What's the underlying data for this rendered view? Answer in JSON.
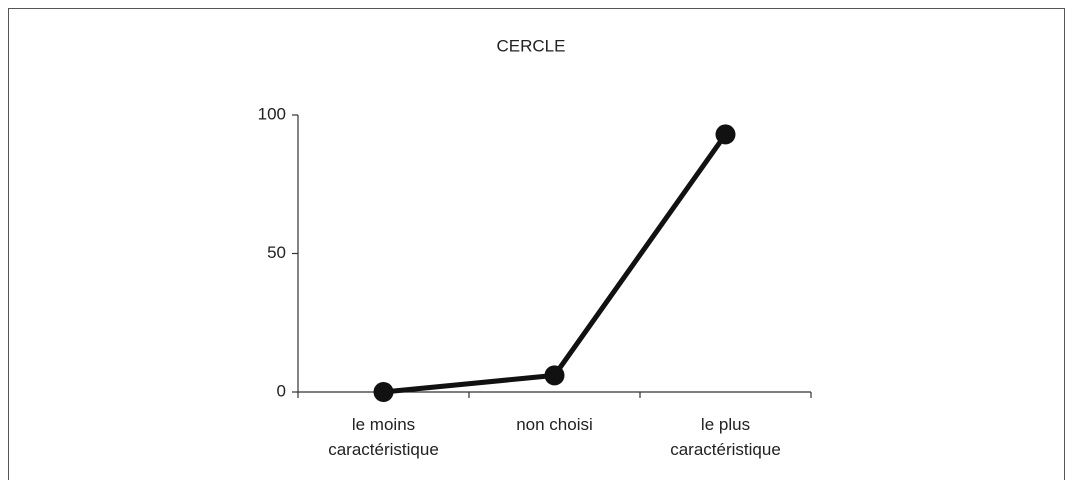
{
  "chart_data": {
    "type": "line",
    "title": "CERCLE",
    "categories": [
      "le moins caractéristique",
      "non choisi",
      "le plus caractéristique"
    ],
    "values": [
      0,
      6,
      93
    ],
    "color": "#111111",
    "ylim": [
      0,
      100
    ],
    "yticks": [
      0,
      50,
      100
    ]
  }
}
